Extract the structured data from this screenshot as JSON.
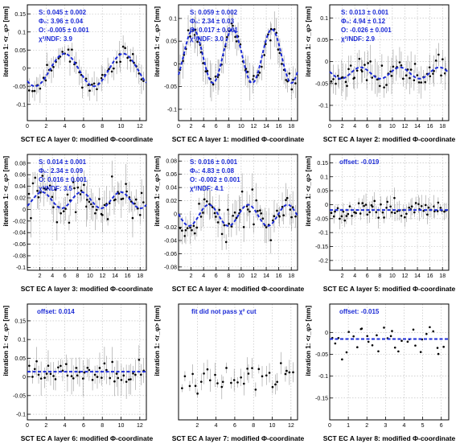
{
  "chart_data": [
    {
      "type": "scatter",
      "xlabel": "SCT EC A layer 0: modified Φ-coordinate",
      "ylabel": "iteration 1: <r_φ> [mm]",
      "xlim": [
        0,
        12.7
      ],
      "ylim": [
        -0.145,
        0.175
      ],
      "xticks": [
        0,
        2,
        4,
        6,
        8,
        10,
        12
      ],
      "yticks": [
        -0.1,
        -0.05,
        0,
        0.05,
        0.1,
        0.15
      ],
      "grid": true,
      "annotations": [
        "S:  0.045 ± 0.002",
        "Φ₀: 3.96 ± 0.04",
        "O:  -0.005 ± 0.001",
        "χ²/NDF: 3.9"
      ],
      "fit": {
        "kind": "sine",
        "S": 0.045,
        "phi0": 3.96,
        "O": -0.005,
        "period": 6.28
      },
      "points": {
        "x_min": 0.15,
        "x_max": 12.5,
        "count": 52,
        "sigma": 0.018,
        "err": 0.03,
        "seed": 11
      }
    },
    {
      "type": "scatter",
      "xlabel": "SCT EC A layer 1: modified Φ-coordinate",
      "ylabel": "iteration 1: <r_φ> [mm]",
      "xlim": [
        0,
        19
      ],
      "ylim": [
        -0.125,
        0.13
      ],
      "xticks": [
        0,
        2,
        4,
        6,
        8,
        10,
        12,
        14,
        16,
        18
      ],
      "yticks": [
        -0.1,
        -0.05,
        0,
        0.05,
        0.1
      ],
      "grid": true,
      "annotations": [
        "S:  0.059 ± 0.002",
        "Φ₀: 2.34 ± 0.03",
        "O:  0.017 ± 0.001",
        "χ²/NDF: 3.0"
      ],
      "fit": {
        "kind": "sine",
        "S": 0.059,
        "phi0": 2.34,
        "O": 0.017,
        "period": 6.28
      },
      "points": {
        "x_min": 0.2,
        "x_max": 18.8,
        "count": 60,
        "sigma": 0.016,
        "err": 0.03,
        "seed": 23
      }
    },
    {
      "type": "scatter",
      "xlabel": "SCT EC A layer 2: modified Φ-coordinate",
      "ylabel": "iteration 1: <r_φ> [mm]",
      "xlim": [
        0,
        19
      ],
      "ylim": [
        -0.135,
        0.13
      ],
      "xticks": [
        0,
        2,
        4,
        6,
        8,
        10,
        12,
        14,
        16,
        18
      ],
      "yticks": [
        -0.1,
        -0.05,
        0,
        0.05,
        0.1
      ],
      "grid": true,
      "annotations": [
        "S:  0.013 ± 0.001",
        "Φ₀: 4.94 ± 0.12",
        "O:  -0.026 ± 0.001",
        "χ²/NDF: 2.9"
      ],
      "fit": {
        "kind": "sine",
        "S": 0.013,
        "phi0": 4.94,
        "O": -0.026,
        "period": 6.28
      },
      "points": {
        "x_min": 0.2,
        "x_max": 18.8,
        "count": 60,
        "sigma": 0.02,
        "err": 0.03,
        "seed": 37
      }
    },
    {
      "type": "scatter",
      "xlabel": "SCT EC A layer 3: modified Φ-coordinate",
      "ylabel": "iteration 1: <r_φ> [mm]",
      "xlim": [
        0,
        19
      ],
      "ylim": [
        -0.105,
        0.095
      ],
      "xticks": [
        2,
        4,
        6,
        8,
        10,
        12,
        14,
        16,
        18
      ],
      "yticks": [
        -0.1,
        -0.08,
        -0.06,
        -0.04,
        -0.02,
        0,
        0.02,
        0.04,
        0.06,
        0.08
      ],
      "grid": true,
      "annotations": [
        "S:  0.014 ± 0.001",
        "Φ₀: 2.34 ± 0.09",
        "O:  0.016 ± 0.001",
        "χ²/NDF: 3.5"
      ],
      "fit": {
        "kind": "sine",
        "S": 0.014,
        "phi0": 2.34,
        "O": 0.016,
        "period": 6.28
      },
      "points": {
        "x_min": 0.2,
        "x_max": 18.8,
        "count": 62,
        "sigma": 0.022,
        "err": 0.025,
        "seed": 41
      }
    },
    {
      "type": "scatter",
      "xlabel": "SCT EC A layer 4: modified Φ-coordinate",
      "ylabel": "iteration 1: <r_φ> [mm]",
      "xlim": [
        0,
        19
      ],
      "ylim": [
        -0.085,
        0.09
      ],
      "xticks": [
        2,
        4,
        6,
        8,
        10,
        12,
        14,
        16,
        18
      ],
      "yticks": [
        -0.08,
        -0.06,
        -0.04,
        -0.02,
        0,
        0.02,
        0.04,
        0.06,
        0.08
      ],
      "grid": true,
      "annotations": [
        "S:  0.016 ± 0.001",
        "Φ₀: 4.83 ± 0.08",
        "O:  -0.002 ± 0.001",
        "χ²/NDF: 4.1"
      ],
      "fit": {
        "kind": "sine",
        "S": 0.016,
        "phi0": 4.83,
        "O": -0.002,
        "period": 6.28
      },
      "points": {
        "x_min": 0.2,
        "x_max": 18.8,
        "count": 62,
        "sigma": 0.018,
        "err": 0.02,
        "seed": 53
      }
    },
    {
      "type": "scatter",
      "xlabel": "SCT EC A layer 5: modified Φ-coordinate",
      "ylabel": "iteration 1: <r_φ> [mm]",
      "xlim": [
        0,
        19
      ],
      "ylim": [
        -0.235,
        0.18
      ],
      "xticks": [
        2,
        4,
        6,
        8,
        10,
        12,
        14,
        16,
        18
      ],
      "yticks": [
        -0.2,
        -0.15,
        -0.1,
        -0.05,
        0,
        0.05,
        0.1,
        0.15
      ],
      "grid": true,
      "annotations": [
        "offset:  -0.019"
      ],
      "fit": {
        "kind": "const",
        "O": -0.019
      },
      "points": {
        "x_min": 0.2,
        "x_max": 18.8,
        "count": 62,
        "sigma": 0.025,
        "err": 0.03,
        "seed": 67
      }
    },
    {
      "type": "scatter",
      "xlabel": "SCT EC A layer 6: modified Φ-coordinate",
      "ylabel": "iteration 1: <r_φ> [mm]",
      "xlim": [
        0,
        12.7
      ],
      "ylim": [
        -0.115,
        0.195
      ],
      "xticks": [
        0,
        2,
        4,
        6,
        8,
        10,
        12
      ],
      "yticks": [
        -0.1,
        -0.05,
        0,
        0.05,
        0.1,
        0.15
      ],
      "grid": true,
      "annotations": [
        "offset:  0.014"
      ],
      "fit": {
        "kind": "const",
        "O": 0.014
      },
      "points": {
        "x_min": 0.15,
        "x_max": 12.5,
        "count": 48,
        "sigma": 0.025,
        "err": 0.035,
        "seed": 79
      }
    },
    {
      "type": "scatter",
      "xlabel": "SCT EC A layer 7: modified Φ-coordinate",
      "ylabel": "iteration 1: <r_φ> [mm]",
      "xlim": [
        0,
        12.7
      ],
      "ylim": [
        -0.12,
        0.2
      ],
      "xticks": [
        2,
        4,
        6,
        8,
        10,
        12
      ],
      "yticks": [],
      "grid": true,
      "annotations": [
        "fit did not pass χ² cut"
      ],
      "fit": {
        "kind": "none"
      },
      "points": {
        "x_min": 0.3,
        "x_max": 12.5,
        "count": 36,
        "sigma": 0.025,
        "err": 0.025,
        "seed": 97
      }
    },
    {
      "type": "scatter",
      "xlabel": "SCT EC A layer 8: modified Φ-coordinate",
      "ylabel": "iteration 1: <r_φ> [mm]",
      "xlim": [
        0,
        6.4
      ],
      "ylim": [
        -0.2,
        0.065
      ],
      "xticks": [
        0,
        1,
        2,
        3,
        4,
        5,
        6
      ],
      "yticks": [
        -0.15,
        -0.1,
        -0.05,
        0
      ],
      "grid": true,
      "annotations": [
        "offset:  -0.015"
      ],
      "fit": {
        "kind": "const",
        "O": -0.015
      },
      "points": {
        "x_min": 0.1,
        "x_max": 6.2,
        "count": 34,
        "sigma": 0.025,
        "err": 0.0,
        "seed": 113
      }
    }
  ],
  "colors": {
    "fit": "#1c2bd6",
    "label": "#1c2bd6",
    "point": "#000000",
    "grid": "#b8b8b8",
    "errorbar": "#9a9a9a"
  }
}
